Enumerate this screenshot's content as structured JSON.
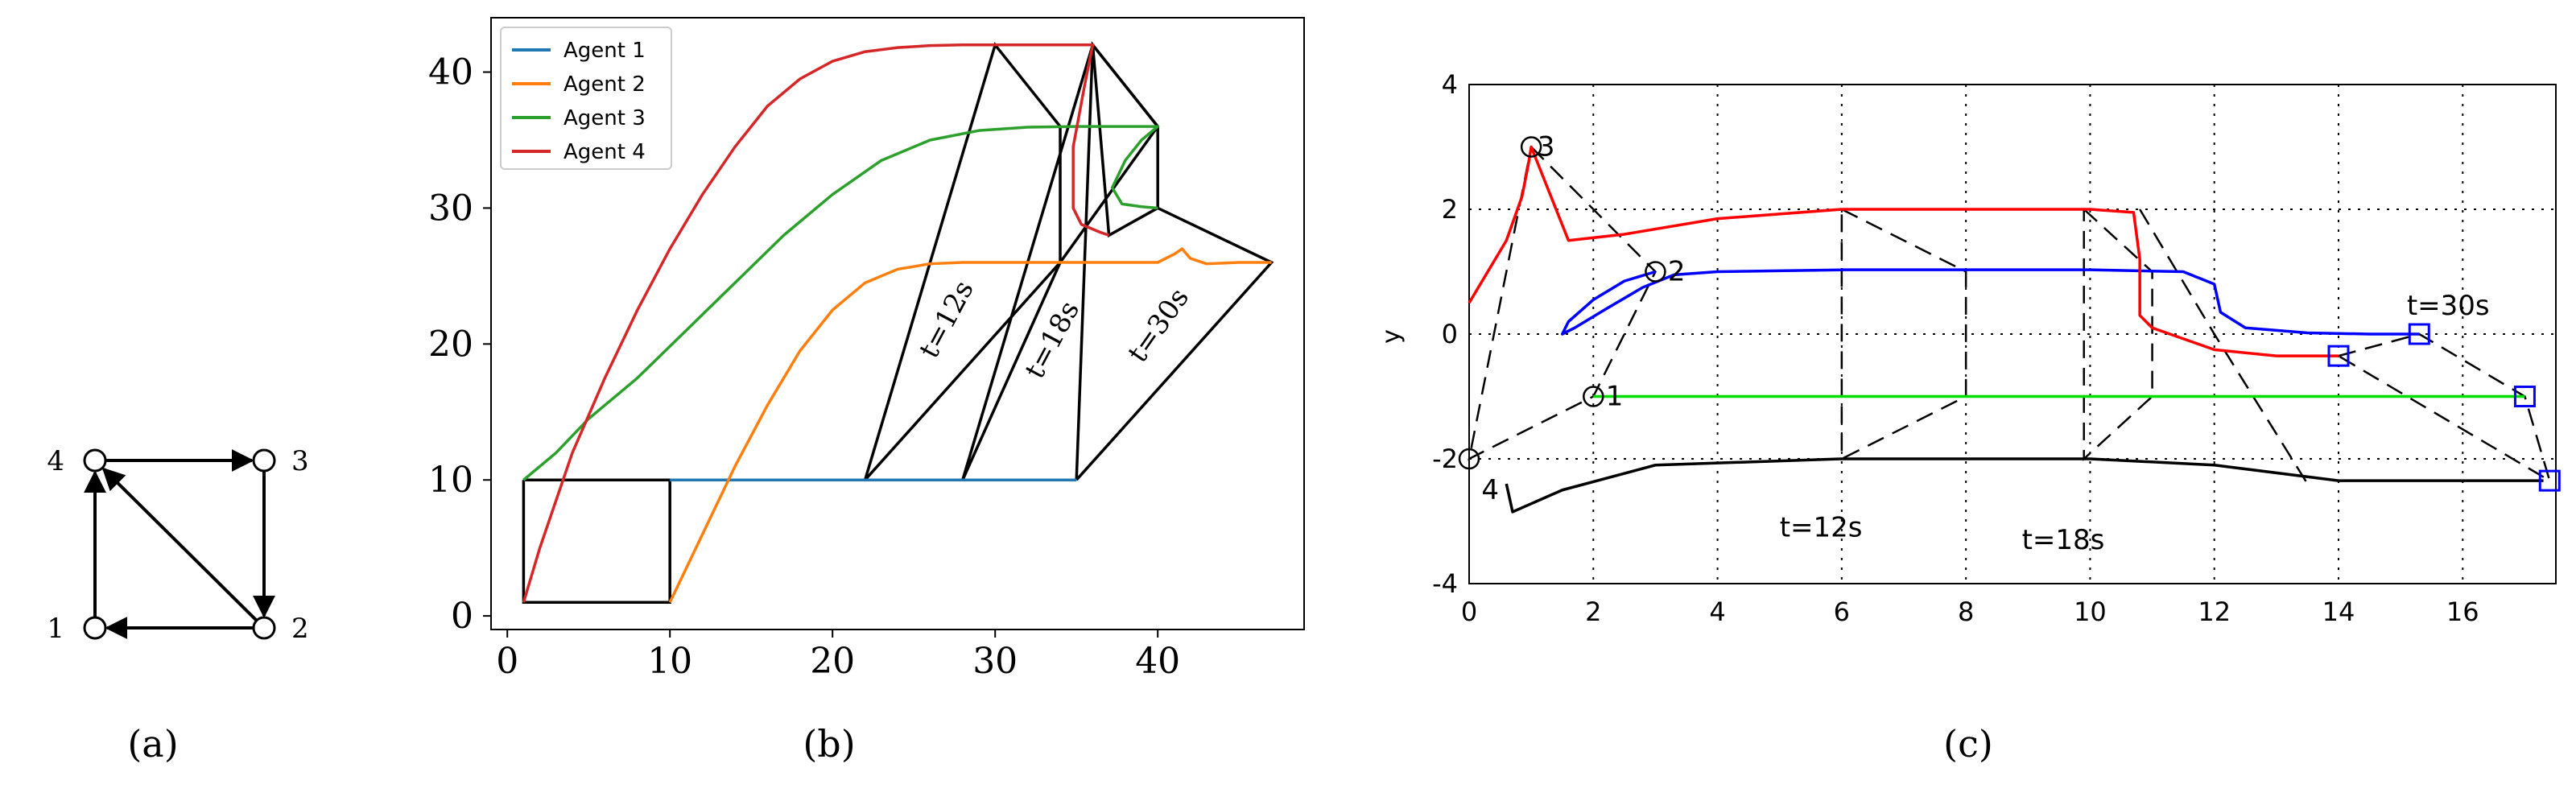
{
  "graph": {
    "caption": "(a)",
    "nodes": [
      {
        "id": "1",
        "label": "1"
      },
      {
        "id": "2",
        "label": "2"
      },
      {
        "id": "3",
        "label": "3"
      },
      {
        "id": "4",
        "label": "4"
      }
    ],
    "edges": [
      {
        "from": "4",
        "to": "3"
      },
      {
        "from": "3",
        "to": "2"
      },
      {
        "from": "2",
        "to": "1"
      },
      {
        "from": "1",
        "to": "4"
      },
      {
        "from": "2",
        "to": "4"
      }
    ]
  },
  "chart_data": [
    {
      "type": "line",
      "caption": "(b)",
      "xlim": [
        -1,
        49
      ],
      "ylim": [
        -1,
        44
      ],
      "xticks": [
        0,
        10,
        20,
        30,
        40
      ],
      "yticks": [
        0,
        10,
        20,
        30,
        40
      ],
      "legend": "top-left",
      "grid": false,
      "series": [
        {
          "name": "Agent 1",
          "color": "#1f77b4",
          "x": [
            10,
            35
          ],
          "y": [
            10,
            10
          ]
        },
        {
          "name": "Agent 2",
          "color": "#ff7f0e",
          "x": [
            10,
            11,
            12,
            14,
            16,
            18,
            20,
            22,
            24,
            26,
            28,
            30,
            32,
            35,
            38,
            40,
            41,
            41.5,
            42,
            43,
            45,
            47
          ],
          "y": [
            1,
            3.5,
            6,
            11,
            15.5,
            19.5,
            22.5,
            24.5,
            25.5,
            25.9,
            26,
            26,
            26,
            26,
            26,
            26,
            26.6,
            27,
            26.3,
            25.9,
            26,
            26
          ]
        },
        {
          "name": "Agent 3",
          "color": "#2ca02c",
          "x": [
            1,
            3,
            5,
            8,
            11,
            14,
            17,
            20,
            23,
            26,
            29,
            32,
            35,
            37,
            39,
            40,
            39,
            38,
            37.2,
            37.8,
            39,
            40
          ],
          "y": [
            10,
            12,
            14.5,
            17.5,
            21,
            24.5,
            28,
            31,
            33.5,
            35,
            35.7,
            35.95,
            36,
            36,
            36,
            36,
            35,
            33.5,
            31.5,
            30.3,
            30.1,
            30
          ]
        },
        {
          "name": "Agent 4",
          "color": "#d62728",
          "x": [
            1,
            2,
            4,
            6,
            8,
            10,
            12,
            14,
            16,
            18,
            20,
            22,
            24,
            26,
            28,
            30,
            33,
            36,
            35.5,
            34.8,
            34.8,
            35.3,
            36.5,
            37
          ],
          "y": [
            1,
            5,
            12,
            17.5,
            22.5,
            27,
            31,
            34.5,
            37.5,
            39.5,
            40.8,
            41.5,
            41.8,
            41.95,
            42,
            42,
            42,
            42,
            39,
            34.5,
            30,
            28.8,
            28.2,
            28
          ]
        }
      ],
      "annotations": [
        {
          "text": "t=12s",
          "x": 27.5,
          "y": 21.5,
          "rotate": -62
        },
        {
          "text": "t=18s",
          "x": 34,
          "y": 20,
          "rotate": -62
        },
        {
          "text": "t=30s",
          "x": 40.5,
          "y": 21,
          "rotate": -55
        }
      ],
      "formations": [
        {
          "x": [
            1,
            10,
            10,
            1,
            1
          ],
          "y": [
            10,
            10,
            1,
            1,
            10
          ]
        },
        {
          "x": [
            22,
            30,
            34,
            34,
            22
          ],
          "y": [
            10,
            42,
            36,
            26,
            10
          ]
        },
        {
          "x": [
            28,
            36,
            40,
            34,
            28
          ],
          "y": [
            10,
            42,
            36,
            26,
            10
          ]
        },
        {
          "x": [
            35,
            36,
            40,
            40,
            47,
            35
          ],
          "y": [
            10,
            42,
            36,
            30,
            26,
            10
          ]
        },
        {
          "x": [
            36,
            37,
            40
          ],
          "y": [
            42,
            28,
            30
          ]
        }
      ]
    },
    {
      "type": "line",
      "caption": "(c)",
      "xlim": [
        0,
        17.5
      ],
      "ylim": [
        -4,
        4
      ],
      "xticks": [
        0,
        2,
        4,
        6,
        8,
        10,
        12,
        14,
        16
      ],
      "yticks": [
        -4,
        -2,
        0,
        2,
        4
      ],
      "ylabel": "y",
      "grid": true,
      "series": [
        {
          "color": "#00dd00",
          "x": [
            2,
            17
          ],
          "y": [
            -1,
            -1
          ]
        },
        {
          "color": "#0000ff",
          "x": [
            3,
            2.5,
            2,
            1.6,
            1.5,
            1.7,
            2.2,
            2.8,
            3.3,
            4,
            6,
            8,
            10,
            11.5,
            12,
            12.1,
            12.5,
            13.5,
            14.5,
            15.3
          ],
          "y": [
            1,
            0.85,
            0.55,
            0.2,
            0,
            0.1,
            0.4,
            0.75,
            0.95,
            1.0,
            1.03,
            1.03,
            1.03,
            1.0,
            0.8,
            0.35,
            0.1,
            0.02,
            0,
            0
          ]
        },
        {
          "color": "#ff0000",
          "x": [
            0,
            0.3,
            0.6,
            0.85,
            0.95,
            1,
            1.6,
            2.5,
            4,
            6,
            8,
            10,
            10.7,
            10.8,
            10.8,
            11,
            12,
            13,
            14
          ],
          "y": [
            0.5,
            1.0,
            1.5,
            2.2,
            2.7,
            3.0,
            1.5,
            1.6,
            1.85,
            2.0,
            2.0,
            2.0,
            1.95,
            1.2,
            0.3,
            0.1,
            -0.25,
            -0.35,
            -0.35
          ]
        },
        {
          "color": "#000000",
          "x": [
            0.6,
            0.7,
            1.5,
            3,
            6,
            10,
            12,
            14,
            17.3
          ],
          "y": [
            -2.4,
            -2.85,
            -2.5,
            -2.1,
            -2.0,
            -2.0,
            -2.1,
            -2.35,
            -2.35
          ]
        }
      ],
      "annotations": [
        {
          "text": "3",
          "x": 1.1,
          "y": 3.0
        },
        {
          "text": "2",
          "x": 3.2,
          "y": 1.0
        },
        {
          "text": "1",
          "x": 2.2,
          "y": -1.0
        },
        {
          "text": "4",
          "x": 0.2,
          "y": -2.5
        },
        {
          "text": "t=12s",
          "x": 5,
          "y": -3.1
        },
        {
          "text": "t=18s",
          "x": 8.9,
          "y": -3.3
        },
        {
          "text": "t=30s",
          "x": 15.1,
          "y": 0.45
        }
      ],
      "start_markers": [
        {
          "label": "1",
          "x": 2,
          "y": -1
        },
        {
          "label": "2",
          "x": 3,
          "y": 1
        },
        {
          "label": "3",
          "x": 1,
          "y": 3
        },
        {
          "label": "4",
          "x": 0,
          "y": -2
        }
      ],
      "end_markers": [
        {
          "x": 17,
          "y": -1
        },
        {
          "x": 15.3,
          "y": 0
        },
        {
          "x": 14,
          "y": -0.35
        },
        {
          "x": 17.4,
          "y": -2.35
        }
      ],
      "formations": [
        {
          "x": [
            1,
            3,
            2,
            0,
            1
          ],
          "y": [
            3,
            1,
            -1,
            -2,
            3
          ]
        },
        {
          "x": [
            6,
            8,
            8,
            6,
            6
          ],
          "y": [
            2,
            1,
            -1,
            -2,
            2
          ]
        },
        {
          "x": [
            9.9,
            11,
            11,
            9.9,
            9.9
          ],
          "y": [
            2,
            1,
            -1,
            -2,
            2
          ]
        },
        {
          "x": [
            10.8,
            12,
            12,
            13.5
          ],
          "y": [
            2,
            0,
            0,
            -2.4
          ]
        },
        {
          "x": [
            14,
            15.3,
            17,
            17.4,
            14
          ],
          "y": [
            -0.35,
            0,
            -1,
            -2.35,
            -0.35
          ]
        }
      ]
    }
  ]
}
